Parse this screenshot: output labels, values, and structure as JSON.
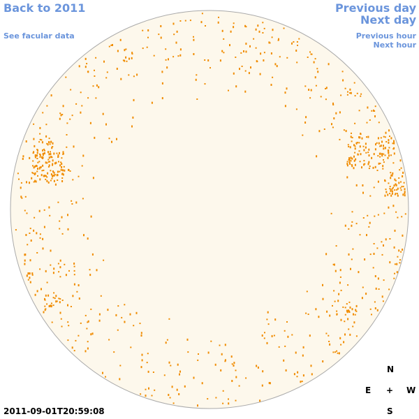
{
  "nav": {
    "back": "Back to 2011",
    "facular": "See facular data",
    "previous_day": "Previous day",
    "next_day": "Next day",
    "previous_hour": "Previous hour",
    "next_hour": "Next hour"
  },
  "compass": {
    "north": "N",
    "east": "E",
    "center": "+",
    "west": "W",
    "south": "S"
  },
  "timestamp": "2011-09-01T20:59:08"
}
